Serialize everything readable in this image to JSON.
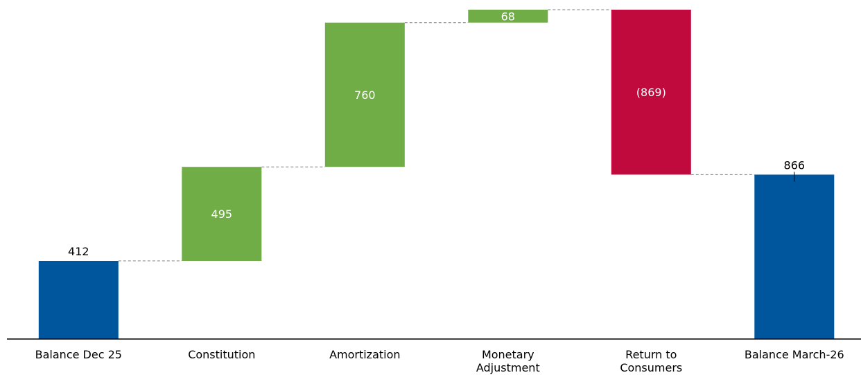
{
  "chart_data": {
    "type": "waterfall",
    "categories": [
      [
        "Balance Dec 25"
      ],
      [
        "Constitution"
      ],
      [
        "Amortization"
      ],
      [
        "Monetary",
        "Adjustment"
      ],
      [
        "Return to",
        "Consumers"
      ],
      [
        "Balance March-26"
      ]
    ],
    "values": [
      412,
      495,
      760,
      68,
      -869,
      866
    ],
    "kinds": [
      "total",
      "increase",
      "increase",
      "increase",
      "decrease",
      "total"
    ],
    "data_labels": [
      "412",
      "495",
      "760",
      "68",
      "(869)",
      "866"
    ],
    "colors": {
      "total": "#00569c",
      "increase": "#70ad47",
      "decrease": "#c00a3d",
      "connector": "#7f7f7f",
      "axis": "#000000"
    },
    "ylim": [
      0,
      1735
    ],
    "grid": false,
    "legend": "none"
  }
}
